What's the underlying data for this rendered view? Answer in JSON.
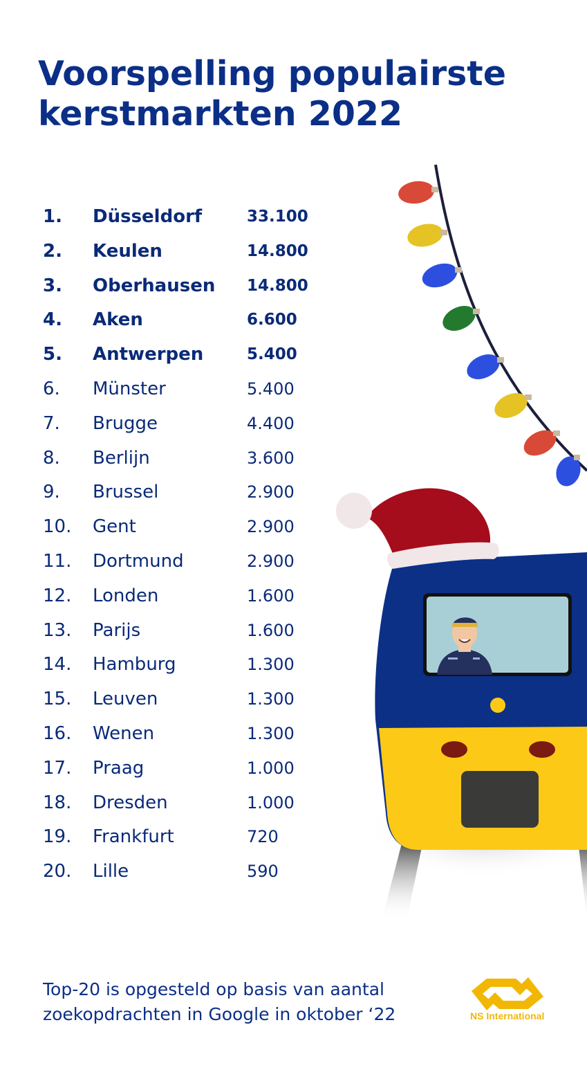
{
  "title_line1": "Voorspelling populairste",
  "title_line2": "kerstmarkten 2022",
  "ranking": [
    {
      "rank": "1.",
      "city": "Düsseldorf",
      "value": "33.100"
    },
    {
      "rank": "2.",
      "city": "Keulen",
      "value": "14.800"
    },
    {
      "rank": "3.",
      "city": "Oberhausen",
      "value": "14.800"
    },
    {
      "rank": "4.",
      "city": "Aken",
      "value": "6.600"
    },
    {
      "rank": "5.",
      "city": "Antwerpen",
      "value": "5.400"
    },
    {
      "rank": "6.",
      "city": "Münster",
      "value": "5.400"
    },
    {
      "rank": "7.",
      "city": "Brugge",
      "value": "4.400"
    },
    {
      "rank": "8.",
      "city": "Berlijn",
      "value": "3.600"
    },
    {
      "rank": "9.",
      "city": "Brussel",
      "value": "2.900"
    },
    {
      "rank": "10.",
      "city": "Gent",
      "value": "2.900"
    },
    {
      "rank": "11.",
      "city": "Dortmund",
      "value": "2.900"
    },
    {
      "rank": "12.",
      "city": "Londen",
      "value": "1.600"
    },
    {
      "rank": "13.",
      "city": "Parijs",
      "value": "1.600"
    },
    {
      "rank": "14.",
      "city": "Hamburg",
      "value": "1.300"
    },
    {
      "rank": "15.",
      "city": "Leuven",
      "value": "1.300"
    },
    {
      "rank": "16.",
      "city": "Wenen",
      "value": "1.300"
    },
    {
      "rank": "17.",
      "city": "Praag",
      "value": "1.000"
    },
    {
      "rank": "18.",
      "city": "Dresden",
      "value": "1.000"
    },
    {
      "rank": "19.",
      "city": "Frankfurt",
      "value": "720"
    },
    {
      "rank": "20.",
      "city": "Lille",
      "value": "590"
    }
  ],
  "footnote_line1": "Top-20 is opgesteld op basis van aantal",
  "footnote_line2": "zoekopdrachten in Google in oktober ‘22",
  "logo_text": "NS International",
  "colors": {
    "text_blue": "#0b2f87",
    "train_blue": "#0b3086",
    "train_yellow": "#fcc917",
    "hat_red": "#a50d1c",
    "logo_yellow": "#f2b705"
  },
  "light_colors": [
    "#d84a37",
    "#e5c324",
    "#2d4fe0",
    "#237a2f",
    "#2d4fe0",
    "#e5c324",
    "#d84a37",
    "#2d4fe0"
  ]
}
